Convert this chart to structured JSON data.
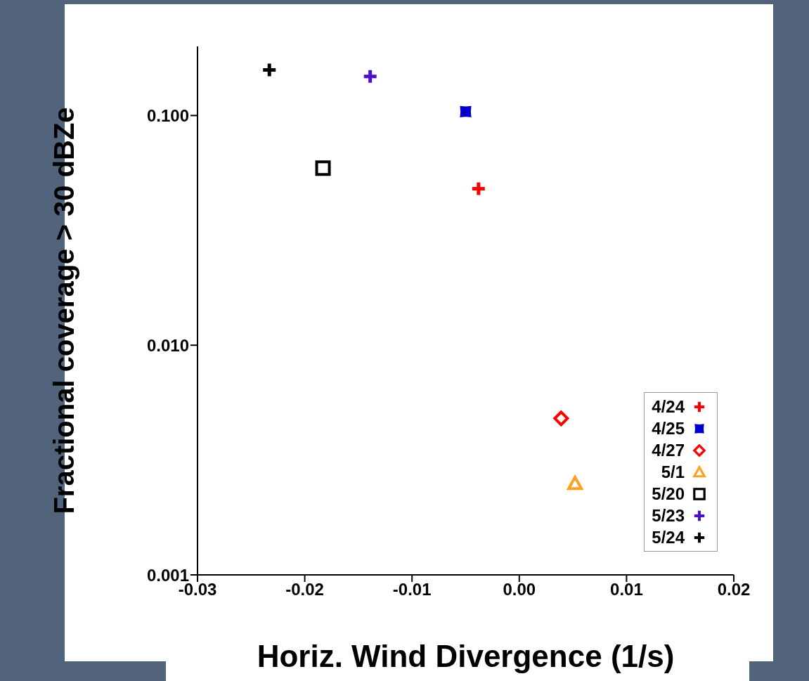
{
  "chart_data": {
    "type": "scatter",
    "xlabel": "Horiz. Wind Divergence (1/s)",
    "ylabel": "Fractional coverage > 30 dBZe",
    "xlim": [
      -0.03,
      0.02
    ],
    "xticks": [
      {
        "value": -0.03,
        "label": "-0.03"
      },
      {
        "value": -0.02,
        "label": "-0.02"
      },
      {
        "value": -0.01,
        "label": "-0.01"
      },
      {
        "value": 0,
        "label": "0.00"
      },
      {
        "value": 0.01,
        "label": "0.01"
      },
      {
        "value": 0.02,
        "label": "0.02"
      }
    ],
    "ylim": [
      0.001,
      0.2
    ],
    "yticks": [
      {
        "value": 0.001,
        "label": "0.001"
      },
      {
        "value": 0.01,
        "label": "0.010"
      },
      {
        "value": 0.1,
        "label": "0.100"
      }
    ],
    "log": "y",
    "grid": false,
    "legend": "bottom right",
    "series": [
      {
        "name": "4/24",
        "color": "#ff0000",
        "marker": "cross",
        "x": [
          -0.0038
        ],
        "values": [
          0.048
        ]
      },
      {
        "name": "4/25",
        "color": "#0000cc",
        "marker": "star",
        "x": [
          -0.005
        ],
        "values": [
          0.104
        ]
      },
      {
        "name": "4/27",
        "color": "#ff0000",
        "marker": "diamond",
        "x": [
          0.0039
        ],
        "values": [
          0.0048
        ]
      },
      {
        "name": "5/1",
        "color": "#ffa020",
        "marker": "triangle",
        "x": [
          0.0052
        ],
        "values": [
          0.0025
        ]
      },
      {
        "name": "5/20",
        "color": "#000000",
        "marker": "square",
        "x": [
          -0.0183
        ],
        "values": [
          0.059
        ]
      },
      {
        "name": "5/23",
        "color": "#4b0fc8",
        "marker": "cross",
        "x": [
          -0.0139
        ],
        "values": [
          0.148
        ]
      },
      {
        "name": "5/24",
        "color": "#000000",
        "marker": "cross",
        "x": [
          -0.0233
        ],
        "values": [
          0.158
        ]
      }
    ]
  }
}
